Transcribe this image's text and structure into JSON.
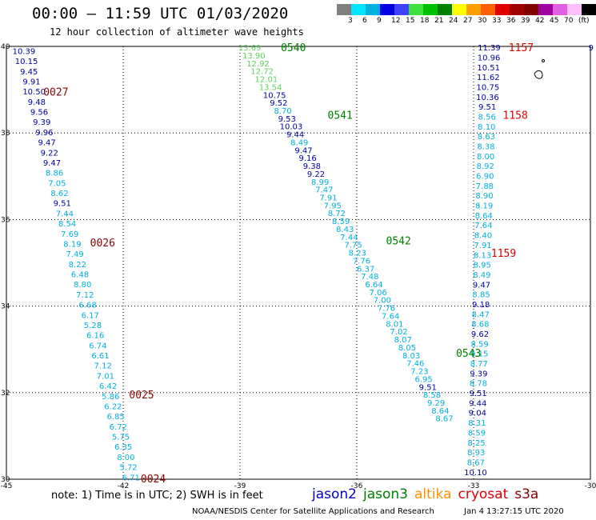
{
  "header": {
    "title": "00:00 – 11:59 UTC 01/03/2020",
    "subtitle": "12 hour collection of altimeter wave heights"
  },
  "legend": {
    "units": "(ft)",
    "ticks": [
      "3",
      "6",
      "9",
      "12",
      "15",
      "18",
      "21",
      "24",
      "27",
      "30",
      "33",
      "36",
      "39",
      "42",
      "45",
      "70"
    ],
    "colors": [
      "#808080",
      "#00e5ff",
      "#00b0e0",
      "#0000e0",
      "#4040ff",
      "#40e040",
      "#00c000",
      "#008000",
      "#ffff00",
      "#ffa000",
      "#ff6000",
      "#e00000",
      "#a00000",
      "#800000",
      "#a000a0",
      "#e060e0",
      "#ffc0ff",
      "#000000"
    ]
  },
  "map": {
    "lon_ticks": [
      "-45",
      "-42",
      "-39",
      "-36",
      "-33",
      "-30"
    ],
    "lat_ticks": [
      "40",
      "38",
      "36",
      "34",
      "32",
      "30"
    ],
    "extent": {
      "lon": [
        -45,
        -30
      ],
      "lat": [
        30,
        40
      ]
    },
    "pass_colors": {
      "dark_red": "#8b0000",
      "green": "#008000",
      "red": "#e00000"
    },
    "wave_colors": {
      "light_green": "#60d060",
      "cyan": "#00b0e0",
      "navy": "#0000a0",
      "gray": "#707070"
    },
    "pass_labels": [
      {
        "text": "0027",
        "lon": -44.05,
        "lat": 38.96,
        "color": "dark_red"
      },
      {
        "text": "0026",
        "lon": -42.85,
        "lat": 35.47,
        "color": "dark_red"
      },
      {
        "text": "0025",
        "lon": -41.85,
        "lat": 31.96,
        "color": "dark_red"
      },
      {
        "text": "0024",
        "lon": -41.55,
        "lat": 30.02,
        "color": "dark_red"
      },
      {
        "text": "0540",
        "lon": -37.95,
        "lat": 39.98,
        "color": "green"
      },
      {
        "text": "0541",
        "lon": -36.75,
        "lat": 38.42,
        "color": "green"
      },
      {
        "text": "0542",
        "lon": -35.25,
        "lat": 35.52,
        "color": "green"
      },
      {
        "text": "0543",
        "lon": -33.45,
        "lat": 32.92,
        "color": "green"
      },
      {
        "text": "1157",
        "lon": -32.1,
        "lat": 39.98,
        "color": "red"
      },
      {
        "text": "1158",
        "lon": -32.25,
        "lat": 38.42,
        "color": "red"
      },
      {
        "text": "1159",
        "lon": -32.55,
        "lat": 35.23,
        "color": "red"
      }
    ],
    "tracks": [
      {
        "lon_start": -44.55,
        "lon_end": -41.8,
        "lat_start": 39.9,
        "lat_end": 30.05,
        "values": [
          "10.39",
          "10.15",
          "9.45",
          "9.91",
          "10.50",
          "9.48",
          "9.56",
          "9.39",
          "9.96",
          "9.47",
          "9.22",
          "9.47",
          "8.86",
          "7.05",
          "8.62",
          "9.51",
          "7.44",
          "8.54",
          "7.69",
          "8.19",
          "7.49",
          "8.22",
          "6.48",
          "8.80",
          "7.12",
          "6.68",
          "6.17",
          "5.28",
          "6.16",
          "6.74",
          "6.61",
          "7.12",
          "7.01",
          "6.42",
          "5.86",
          "6.22",
          "6.85",
          "6.72",
          "5.75",
          "6.35",
          "8.00",
          "5.72",
          "6.71"
        ],
        "colors": [
          "navy",
          "navy",
          "navy",
          "navy",
          "navy",
          "navy",
          "navy",
          "navy",
          "navy",
          "navy",
          "navy",
          "navy",
          "cyan",
          "cyan",
          "cyan",
          "navy",
          "cyan",
          "cyan",
          "cyan",
          "cyan",
          "cyan",
          "cyan",
          "cyan",
          "cyan",
          "cyan",
          "cyan",
          "cyan",
          "cyan",
          "cyan",
          "cyan",
          "cyan",
          "cyan",
          "cyan",
          "cyan",
          "cyan",
          "cyan",
          "cyan",
          "cyan",
          "cyan",
          "cyan",
          "cyan",
          "cyan",
          "cyan"
        ]
      },
      {
        "lon_start": -38.75,
        "lon_end": -33.75,
        "lat_start": 39.98,
        "lat_end": 31.41,
        "values": [
          "13.69",
          "13.90",
          "12.92",
          "12.72",
          "12.01",
          "13.54",
          "10.75",
          "9.52",
          "8.70",
          "9.53",
          "10.03",
          "9.44",
          "8.49",
          "9.47",
          "9.16",
          "9.38",
          "9.22",
          "8.99",
          "7.47",
          "7.91",
          "7.95",
          "8.72",
          "8.59",
          "8.43",
          "7.44",
          "7.75",
          "8.23",
          "7.76",
          "6.37",
          "7.48",
          "6.64",
          "7.06",
          "7.00",
          "7.76",
          "7.64",
          "8.01",
          "7.02",
          "8.07",
          "8.05",
          "8.03",
          "7.46",
          "7.23",
          "6.95",
          "9.51",
          "8.58",
          "9.29",
          "8.64",
          "8.67"
        ],
        "colors": [
          "light_green",
          "light_green",
          "light_green",
          "light_green",
          "light_green",
          "light_green",
          "navy",
          "navy",
          "cyan",
          "navy",
          "navy",
          "navy",
          "cyan",
          "navy",
          "navy",
          "navy",
          "navy",
          "cyan",
          "cyan",
          "cyan",
          "cyan",
          "cyan",
          "cyan",
          "cyan",
          "cyan",
          "cyan",
          "cyan",
          "cyan",
          "cyan",
          "cyan",
          "cyan",
          "cyan",
          "cyan",
          "cyan",
          "cyan",
          "cyan",
          "cyan",
          "cyan",
          "cyan",
          "cyan",
          "cyan",
          "cyan",
          "cyan",
          "navy",
          "cyan",
          "cyan",
          "cyan",
          "cyan"
        ]
      },
      {
        "lon_start": -32.6,
        "lon_end": -32.95,
        "lat_start": 39.98,
        "lat_end": 30.17,
        "values": [
          "11.39",
          "10.96",
          "10.51",
          "11.62",
          "10.75",
          "10.36",
          "9.51",
          "8.56",
          "8.10",
          "8.63",
          "8.38",
          "8.00",
          "8.92",
          "6.90",
          "7.88",
          "8.90",
          "8.19",
          "8.64",
          "7.64",
          "8.40",
          "7.91",
          "8.13",
          "8.95",
          "8.49",
          "9.47",
          "8.85",
          "9.18",
          "8.47",
          "8.68",
          "9.62",
          "8.59",
          "9.15",
          "8.77",
          "9.39",
          "8.78",
          "9.51",
          "9.44",
          "9.04",
          "8.31",
          "8.59",
          "8.25",
          "8.93",
          "8.67",
          "10.10"
        ],
        "colors": [
          "navy",
          "navy",
          "navy",
          "navy",
          "navy",
          "navy",
          "navy",
          "cyan",
          "cyan",
          "cyan",
          "cyan",
          "cyan",
          "cyan",
          "cyan",
          "cyan",
          "cyan",
          "cyan",
          "cyan",
          "cyan",
          "cyan",
          "cyan",
          "cyan",
          "cyan",
          "cyan",
          "navy",
          "cyan",
          "navy",
          "cyan",
          "cyan",
          "navy",
          "cyan",
          "cyan",
          "cyan",
          "navy",
          "cyan",
          "navy",
          "navy",
          "navy",
          "cyan",
          "cyan",
          "cyan",
          "cyan",
          "cyan",
          "navy"
        ]
      }
    ],
    "edge_label": {
      "text": "9",
      "lon": -30.05,
      "lat": 39.98,
      "color": "navy"
    }
  },
  "footer": {
    "note": "note: 1) Time is in UTC; 2) SWH is in feet",
    "satellites": [
      {
        "name": "jason2",
        "color": "#0000d0"
      },
      {
        "name": "jason3",
        "color": "#008000"
      },
      {
        "name": "altika",
        "color": "#ff9000"
      },
      {
        "name": "cryosat",
        "color": "#e00000"
      },
      {
        "name": "s3a",
        "color": "#8b0000"
      }
    ],
    "credit": "NOAA/NESDIS Center for Satellite Applications and Research",
    "timestamp": "Jan  4 13:27:15 UTC 2020"
  }
}
